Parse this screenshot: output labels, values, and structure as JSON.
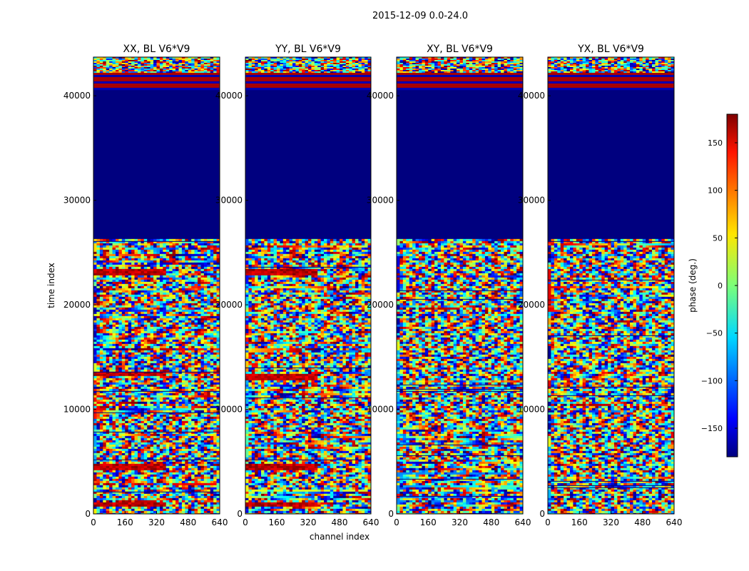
{
  "chart_data": {
    "type": "heatmap",
    "suptitle": "2015-12-09 0.0-24.0",
    "xlabel": "channel index",
    "ylabel": "time index",
    "xlim": [
      0,
      640
    ],
    "ylim": [
      0,
      43700
    ],
    "xticks": [
      "0",
      "160",
      "320",
      "480",
      "640"
    ],
    "yticks": [
      "0",
      "10000",
      "20000",
      "30000",
      "40000"
    ],
    "panels": [
      {
        "title": "XX, BL V6*V9",
        "hot_bands": [
          [
            700,
            1300
          ],
          [
            4200,
            4800
          ],
          [
            13200,
            13600
          ],
          [
            22900,
            23500
          ]
        ]
      },
      {
        "title": "YY, BL V6*V9",
        "hot_bands": [
          [
            700,
            1300
          ],
          [
            4200,
            4800
          ],
          [
            12900,
            13500
          ],
          [
            23000,
            23600
          ]
        ]
      },
      {
        "title": "XY, BL V6*V9",
        "hot_bands": []
      },
      {
        "title": "YX, BL V6*V9",
        "hot_bands": []
      }
    ],
    "blank_band": [
      26300,
      40600
    ],
    "top_red_band": [
      40600,
      42200
    ],
    "colorbar": {
      "label": "phase (deg.)",
      "range": [
        -180,
        180
      ],
      "ticks": [
        "150",
        "100",
        "50",
        "0",
        "−50",
        "−100",
        "−150"
      ],
      "tick_values": [
        150,
        100,
        50,
        0,
        -50,
        -100,
        -150
      ],
      "colormap": "jet"
    },
    "colors": {
      "jet_low": "#00007f",
      "jet_high": "#7f0000"
    }
  }
}
